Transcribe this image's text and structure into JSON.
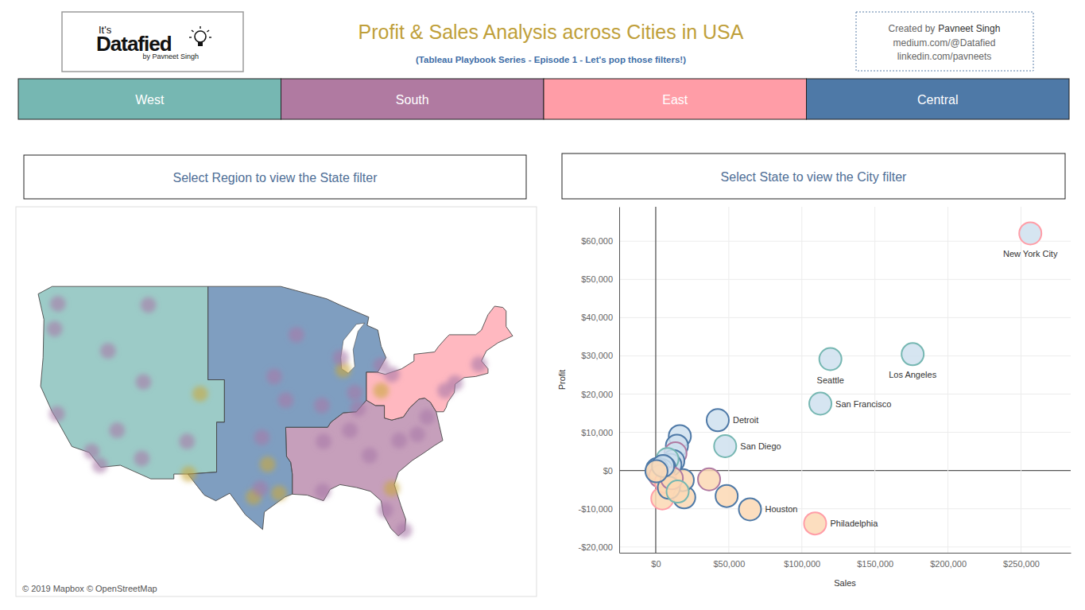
{
  "header": {
    "logo": {
      "top": "It's",
      "main": "Datafied",
      "byline": "by Pavneet Singh"
    },
    "title": "Profit & Sales Analysis across Cities in USA",
    "subtitle": "(Tableau Playbook Series - Episode 1 - Let's pop those filters!)",
    "credits": {
      "prefix": "Created by",
      "author": "Pavneet Singh",
      "lines": [
        "medium.com/@Datafied",
        "linkedin.com/pavneets"
      ]
    }
  },
  "regions": [
    {
      "name": "West",
      "color": "#76b7b2"
    },
    {
      "name": "South",
      "color": "#b07aa1"
    },
    {
      "name": "East",
      "color": "#ff9da7"
    },
    {
      "name": "Central",
      "color": "#4e79a7"
    }
  ],
  "filters": [
    "Select Region to view the State filter",
    "Select State to view the City filter"
  ],
  "chart_data": [
    {
      "type": "map",
      "credit": "© 2019 Mapbox © OpenStreetMap",
      "x": [
        -122.3,
        -122.7,
        -122.4,
        -118.2,
        -117.2,
        -112.1,
        -115.1,
        -111.9,
        -105.0,
        -106.6,
        -116.2,
        -111.3,
        -96.8,
        -95.4,
        -98.5,
        -97.7,
        -106.4,
        -97.5,
        -94.6,
        -96.0,
        -93.3,
        -87.6,
        -87.9,
        -83.0,
        -86.2,
        -83.0,
        -81.7,
        -75.2,
        -74.0,
        -71.1,
        -84.4,
        -86.8,
        -90.0,
        -90.1,
        -81.7,
        -80.2,
        -82.5,
        -80.8,
        -78.6,
        -77.4,
        -85.8,
        -90.2
      ],
      "y": [
        47.6,
        45.5,
        37.8,
        34.1,
        32.7,
        33.4,
        36.2,
        40.8,
        39.7,
        35.1,
        43.6,
        47.5,
        32.8,
        29.8,
        29.4,
        30.3,
        31.8,
        35.5,
        39.1,
        41.3,
        45.0,
        41.9,
        43.0,
        42.3,
        39.8,
        40.0,
        41.5,
        40.0,
        40.7,
        42.4,
        33.7,
        36.2,
        35.1,
        30.0,
        30.3,
        25.8,
        28.0,
        35.2,
        35.8,
        37.5,
        38.3,
        38.6
      ],
      "colors": [
        "#a878a8",
        "#a878a8",
        "#a878a8",
        "#a878a8",
        "#a878a8",
        "#a878a8",
        "#a878a8",
        "#a878a8",
        "#c9a93c",
        "#a878a8",
        "#a878a8",
        "#a878a8",
        "#c9a93c",
        "#c9a93c",
        "#c9a93c",
        "#a878a8",
        "#c9a93c",
        "#a878a8",
        "#a878a8",
        "#a878a8",
        "#a878a8",
        "#c9a93c",
        "#a878a8",
        "#a878a8",
        "#a878a8",
        "#c9a93c",
        "#a878a8",
        "#a878a8",
        "#a878a8",
        "#a878a8",
        "#a878a8",
        "#a878a8",
        "#a878a8",
        "#a878a8",
        "#c9a93c",
        "#a878a8",
        "#a878a8",
        "#a878a8",
        "#a878a8",
        "#a878a8",
        "#a878a8",
        "#a878a8"
      ]
    },
    {
      "type": "scatter",
      "x_label": "Sales",
      "y_label": "Profit",
      "x": [
        256368,
        175851,
        119541,
        112670,
        109077,
        64505,
        42447,
        47521,
        48540,
        36500,
        19500,
        18500,
        4500,
        16500,
        14500,
        13500,
        12000,
        10000,
        8000,
        6000,
        4000,
        2000,
        1000,
        3000,
        7000,
        9000,
        11000,
        15000,
        5000,
        500
      ],
      "y": [
        62037,
        30441,
        29156,
        17507,
        -13838,
        -10154,
        13181,
        6377,
        -6655,
        -2300,
        -7000,
        -2500,
        -7300,
        9000,
        6500,
        4500,
        2500,
        1500,
        3000,
        800,
        200,
        -500,
        400,
        -1500,
        -3000,
        -4500,
        -2000,
        -5500,
        1200,
        -200
      ],
      "labels": [
        "New York City",
        "Los Angeles",
        "Seattle",
        "San Francisco",
        "Philadelphia",
        "Houston",
        "Detroit",
        "San Diego",
        null,
        null,
        null,
        null,
        null,
        null,
        null,
        null,
        null,
        null,
        null,
        null,
        null,
        null,
        null,
        null,
        null,
        null,
        null,
        null,
        null,
        null
      ],
      "colors": [
        "#ff9da7",
        "#76b7b2",
        "#76b7b2",
        "#76b7b2",
        "#ff9da7",
        "#4e79a7",
        "#4e79a7",
        "#76b7b2",
        "#4e79a7",
        "#b07aa1",
        "#4e79a7",
        "#4e79a7",
        "#ff9da7",
        "#4e79a7",
        "#4e79a7",
        "#b07aa1",
        "#4e79a7",
        "#4e79a7",
        "#76b7b2",
        "#4e79a7",
        "#4e79a7",
        "#4e79a7",
        "#4e79a7",
        "#b07aa1",
        "#ff9da7",
        "#4e79a7",
        "#b07aa1",
        "#76b7b2",
        "#4e79a7",
        "#4e79a7"
      ],
      "xlim": [
        -25000,
        284000
      ],
      "ylim": [
        -21500,
        69000
      ],
      "xticks": [
        {
          "value": 0,
          "label": "$0"
        },
        {
          "value": 50000,
          "label": "$50,000"
        },
        {
          "value": 100000,
          "label": "$100,000"
        },
        {
          "value": 150000,
          "label": "$150,000"
        },
        {
          "value": 200000,
          "label": "$200,000"
        },
        {
          "value": 250000,
          "label": "$250,000"
        }
      ],
      "yticks": [
        {
          "value": -20000,
          "label": "-$20,000"
        },
        {
          "value": -10000,
          "label": "-$10,000"
        },
        {
          "value": 0,
          "label": "$0"
        },
        {
          "value": 10000,
          "label": "$10,000"
        },
        {
          "value": 20000,
          "label": "$20,000"
        },
        {
          "value": 30000,
          "label": "$30,000"
        },
        {
          "value": 40000,
          "label": "$40,000"
        },
        {
          "value": 50000,
          "label": "$50,000"
        },
        {
          "value": 60000,
          "label": "$60,000"
        }
      ],
      "grid": true
    }
  ]
}
